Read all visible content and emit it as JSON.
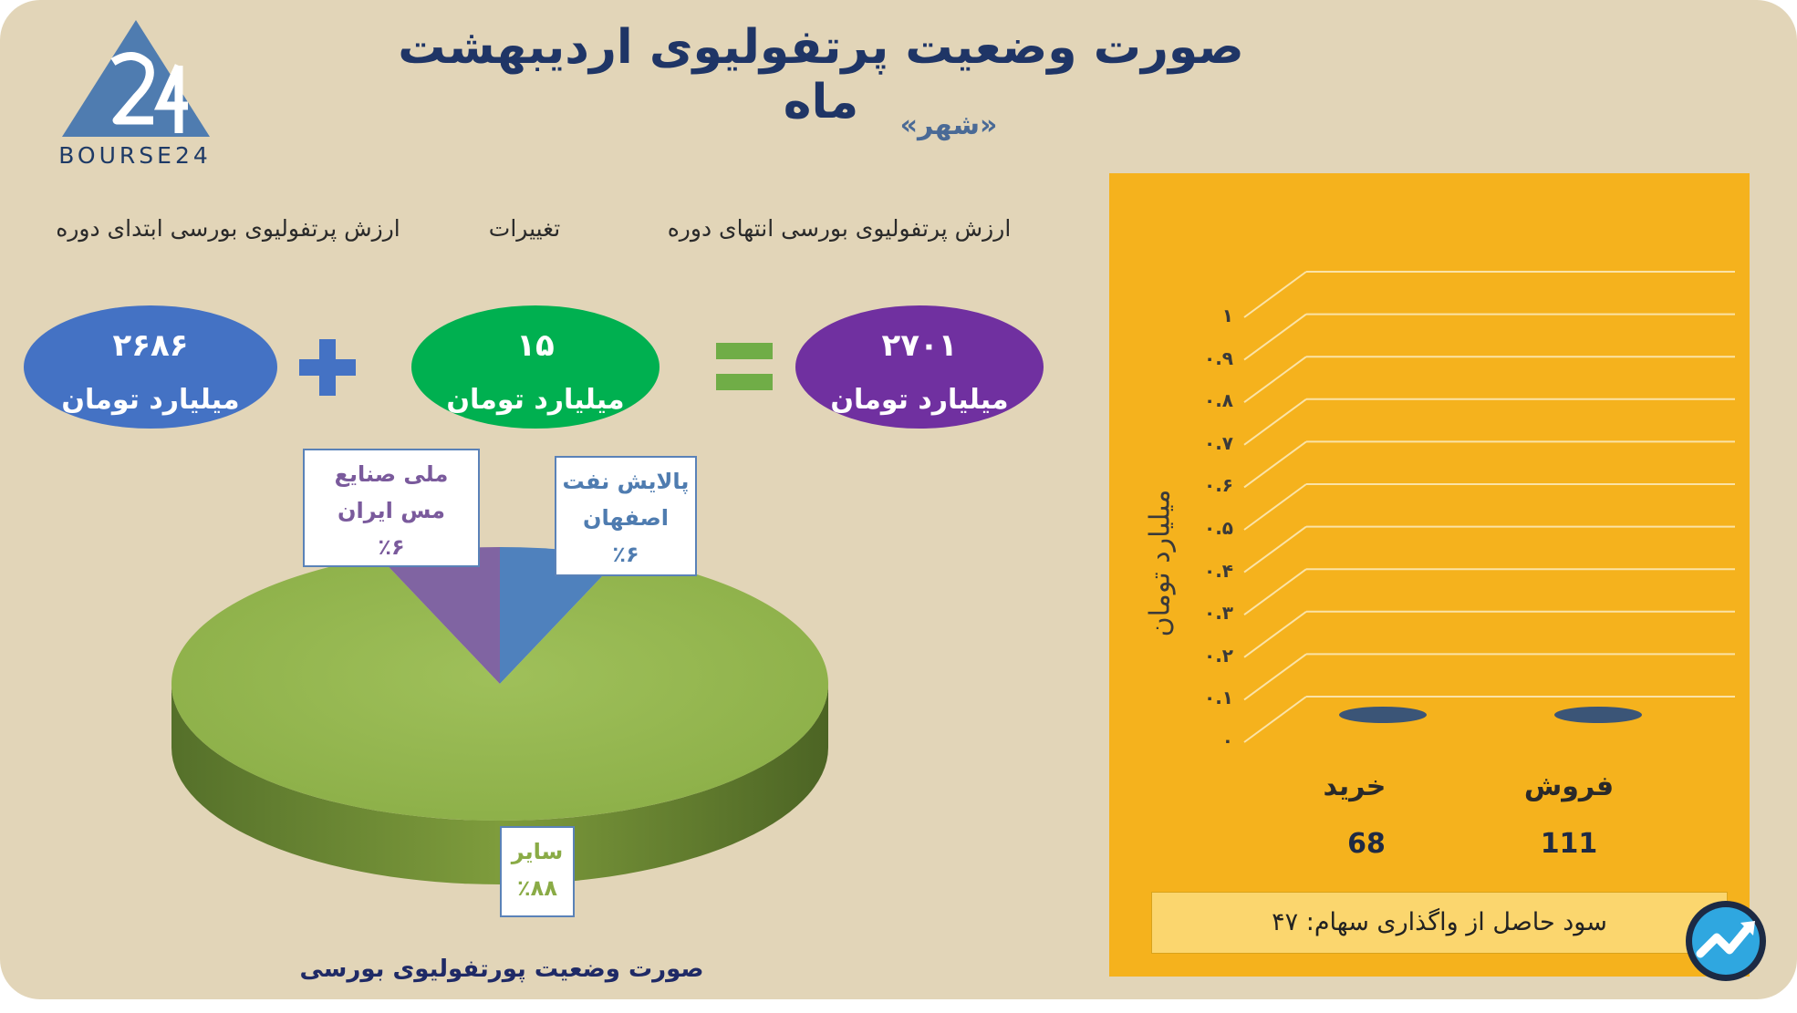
{
  "header": {
    "title": "صورت وضعیت پرتفولیوی اردیبهشت ماه",
    "subtitle": "«شهر»",
    "logo_text": "BOURSE24"
  },
  "equation": {
    "start_label": "ارزش پرتفولیوی بورسی ابتدای دوره",
    "change_label": "تغییرات",
    "end_label": "ارزش پرتفولیوی بورسی انتهای دوره",
    "start_value": "۲۶۸۶",
    "change_value": "۱۵",
    "end_value": "۲۷۰۱",
    "unit": "میلیارد تومان",
    "colors": {
      "start": "#4472c4",
      "change": "#00b050",
      "end": "#7030a0",
      "plus": "#4472c4",
      "equals": "#70ad47"
    }
  },
  "chart_data": [
    {
      "type": "pie",
      "title": "صورت وضعیت پورتفولیوی بورسی",
      "slices": [
        {
          "name": "سایر",
          "value": 88,
          "label": "٪۸۸",
          "color": "#9bbb59"
        },
        {
          "name": "ملی صنایع مس ایران",
          "value": 6,
          "label": "٪۶",
          "color": "#8064a2"
        },
        {
          "name": "پالایش نفت اصفهان",
          "value": 6,
          "label": "٪۶",
          "color": "#4f81bd"
        }
      ]
    },
    {
      "type": "bar",
      "title": "",
      "ylabel": "میلیارد تومان",
      "ylim": [
        0,
        1
      ],
      "yticks": [
        "۰",
        "۰.۱",
        "۰.۲",
        "۰.۳",
        "۰.۴",
        "۰.۵",
        "۰.۶",
        "۰.۷",
        "۰.۸",
        "۰.۹",
        "۱"
      ],
      "categories": [
        "فروش",
        "خرید"
      ],
      "values": [
        111,
        68
      ],
      "value_labels": [
        "111",
        "68"
      ],
      "bar_color": "#3b5577"
    }
  ],
  "footer": {
    "profit_text": "سود حاصل از واگذاری سهام: ۴۷"
  }
}
